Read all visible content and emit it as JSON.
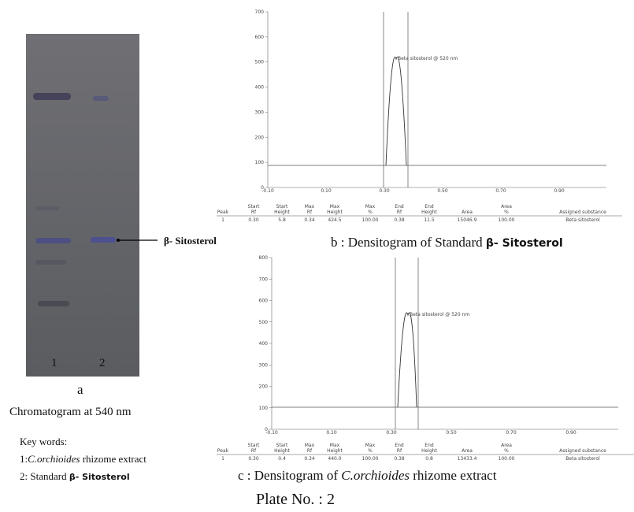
{
  "panel_a": {
    "lane_labels": [
      "1",
      "2"
    ],
    "band_label": "β- Sitosterol",
    "letter": "a",
    "caption": "Chromatogram at 540 nm"
  },
  "key_words": {
    "title": "Key words:",
    "items": [
      {
        "prefix": "1:",
        "italic": "C.orchioides",
        "suffix": " rhizome extract"
      },
      {
        "prefix": "2: Standard ",
        "bold": "β- Sitosterol"
      }
    ]
  },
  "densitograms": [
    {
      "yticks": [
        0,
        100,
        200,
        300,
        400,
        500,
        600,
        700
      ],
      "xticks": [
        "-0.10",
        "0.10",
        "0.30",
        "0.50",
        "0.70",
        "0.90"
      ],
      "peak_label": "Beta sitosterol @ 520 nm",
      "table": {
        "header": [
          [
            "Peak"
          ],
          [
            "Start",
            "Rf"
          ],
          [
            "Start",
            "Height"
          ],
          [
            "Max",
            "Rf"
          ],
          [
            "Max",
            "Height"
          ],
          [
            "Max",
            "%"
          ],
          [
            "End",
            "Rf"
          ],
          [
            "End",
            "Height"
          ],
          [
            "Area"
          ],
          [
            "Area",
            "%"
          ],
          [
            "Assigned substance"
          ]
        ],
        "row": [
          "1",
          "0.30",
          "5.8",
          "0.34",
          "424.5",
          "100.00",
          "0.38",
          "11.5",
          "15046.9",
          "100.00",
          "Beta sitosterol"
        ]
      },
      "caption": {
        "prefix": "b : Densitogram of Standard ",
        "bold": "β- Sitosterol"
      }
    },
    {
      "yticks": [
        0,
        100,
        200,
        300,
        400,
        500,
        600,
        700,
        800
      ],
      "xticks": [
        "-0.10",
        "0.10",
        "0.30",
        "0.50",
        "0.70",
        "0.90"
      ],
      "peak_label": "Beta sitosterol @ 520 nm",
      "table": {
        "header": [
          [
            "Peak"
          ],
          [
            "Start",
            "Rf"
          ],
          [
            "Start",
            "Height"
          ],
          [
            "Max",
            "Rf"
          ],
          [
            "Max",
            "Height"
          ],
          [
            "Max",
            "%"
          ],
          [
            "End",
            "Rf"
          ],
          [
            "End",
            "Height"
          ],
          [
            "Area"
          ],
          [
            "Area",
            "%"
          ],
          [
            "Assigned substance"
          ]
        ],
        "row": [
          "1",
          "0.30",
          "0.4",
          "0.34",
          "440.0",
          "100.00",
          "0.38",
          "0.8",
          "13433.4",
          "100.00",
          "Beta sitosterol"
        ]
      },
      "caption": {
        "prefix": "c : Densitogram of ",
        "italic": "C.orchioides",
        "suffix": " rhizome extract"
      }
    }
  ],
  "plate": "Plate No. : 2"
}
